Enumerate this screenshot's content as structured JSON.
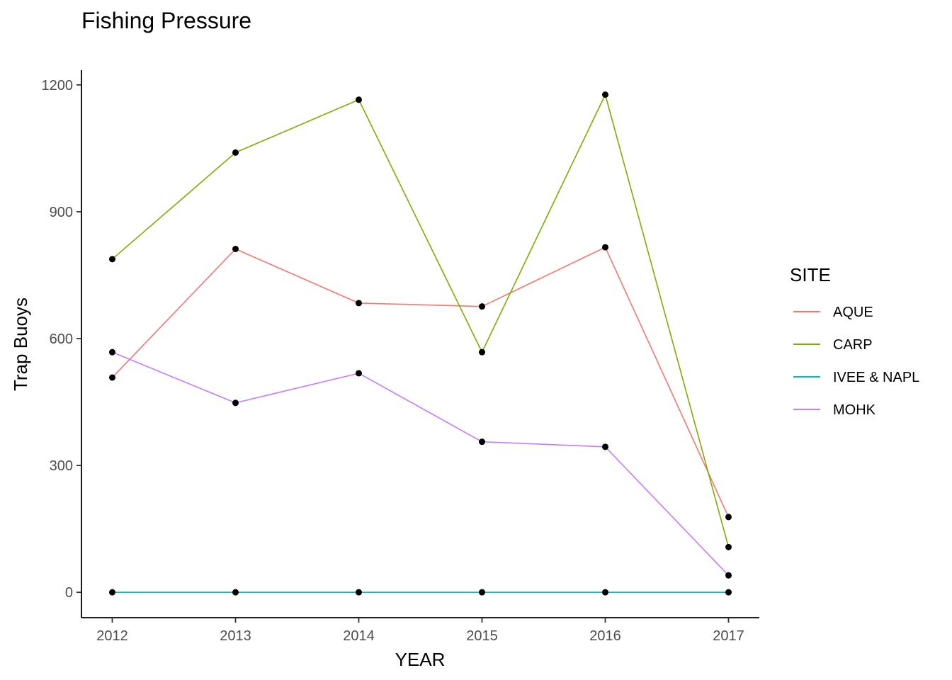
{
  "chart_data": {
    "type": "line",
    "title": "Fishing Pressure",
    "xlabel": "YEAR",
    "ylabel": "Trap Buoys",
    "x": [
      2012,
      2013,
      2014,
      2015,
      2016,
      2017
    ],
    "x_tick_labels": [
      "2012",
      "2013",
      "2014",
      "2015",
      "2016",
      "2017"
    ],
    "y_ticks": [
      0,
      300,
      600,
      900,
      1200
    ],
    "y_tick_labels": [
      "0",
      "300",
      "600",
      "900",
      "1200"
    ],
    "xlim": [
      2011.75,
      2017.25
    ],
    "ylim": [
      -60,
      1235
    ],
    "grid": false,
    "legend": {
      "title": "SITE",
      "position": "right"
    },
    "point_color": "#000000",
    "series": [
      {
        "name": "AQUE",
        "color": "#F8766D",
        "values": [
          508,
          812,
          684,
          676,
          816,
          178
        ]
      },
      {
        "name": "CARP",
        "color": "#7CAE00",
        "values": [
          788,
          1040,
          1165,
          568,
          1177,
          107
        ]
      },
      {
        "name": "IVEE & NAPL",
        "color": "#00BFC4",
        "values": [
          0,
          0,
          0,
          0,
          0,
          0
        ]
      },
      {
        "name": "MOHK",
        "color": "#C77CFF",
        "values": [
          568,
          448,
          518,
          356,
          344,
          40
        ]
      }
    ]
  }
}
